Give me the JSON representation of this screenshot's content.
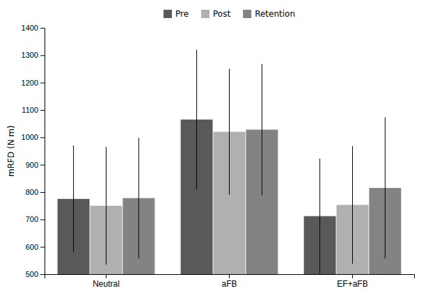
{
  "chart_data": {
    "type": "bar",
    "categories": [
      "Neutral",
      "aFB",
      "EF+aFB"
    ],
    "series": [
      {
        "name": "Pre",
        "color": "#595959",
        "values": [
          775,
          1065,
          712
        ],
        "errors": [
          195,
          255,
          210
        ]
      },
      {
        "name": "Post",
        "color": "#b0b0b0",
        "values": [
          750,
          1020,
          753
        ],
        "errors": [
          215,
          230,
          215
        ]
      },
      {
        "name": "Retention",
        "color": "#838383",
        "values": [
          778,
          1028,
          815
        ],
        "errors": [
          220,
          240,
          258
        ]
      }
    ],
    "ylabel": "mRFD (N m)",
    "ylim": [
      500,
      1400
    ],
    "yticks": [
      500,
      600,
      700,
      800,
      900,
      1000,
      1100,
      1200,
      1300,
      1400
    ],
    "legend": "top",
    "grid": false
  }
}
